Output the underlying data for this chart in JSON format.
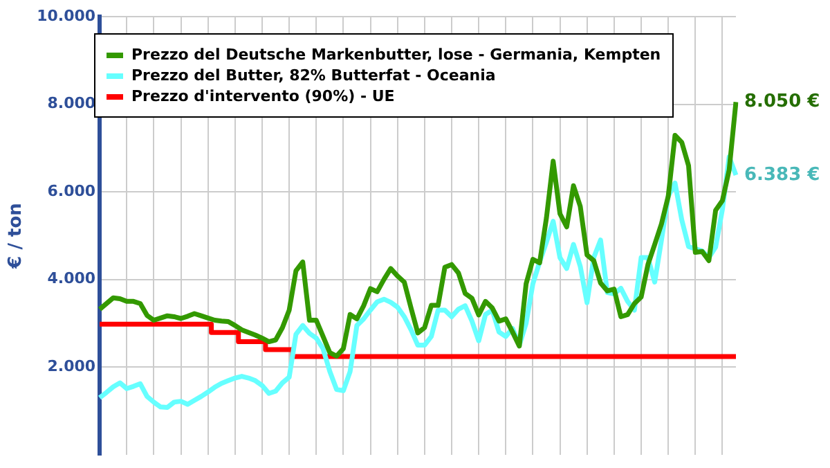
{
  "chart_data": {
    "type": "line",
    "ylabel": "€ / ton",
    "categories": [
      null,
      null,
      null,
      null,
      null,
      null,
      null,
      null,
      null,
      null,
      null,
      null,
      null,
      null,
      null,
      null,
      null,
      null,
      null,
      null,
      null,
      null,
      null,
      null,
      null,
      null,
      null,
      null,
      null,
      null,
      null,
      null,
      null,
      null,
      null,
      null,
      null,
      null,
      null,
      null,
      null,
      null,
      null,
      null,
      null,
      null,
      null,
      null,
      null,
      null,
      null,
      null,
      null,
      null,
      null,
      null,
      null,
      null,
      null,
      null,
      null,
      null,
      null,
      null,
      null,
      null,
      null,
      null,
      null,
      null,
      null,
      null,
      null,
      null,
      null,
      null,
      null,
      null,
      null,
      null,
      null,
      null,
      null,
      null,
      null,
      null,
      null,
      null,
      null,
      null,
      null,
      null,
      null,
      null,
      null
    ],
    "series": [
      {
        "name": "Prezzo del Deutsche Markenbutter, lose - Germania, Kempten",
        "color": "#339900",
        "values": [
          3320,
          3450,
          3580,
          3560,
          3500,
          3500,
          3450,
          3180,
          3070,
          3120,
          3170,
          3150,
          3110,
          3160,
          3220,
          3170,
          3120,
          3070,
          3050,
          3040,
          2950,
          2850,
          2790,
          2730,
          2660,
          2580,
          2620,
          2900,
          3300,
          4200,
          4400,
          3070,
          3070,
          2700,
          2330,
          2250,
          2420,
          3200,
          3100,
          3400,
          3790,
          3720,
          4000,
          4250,
          4080,
          3940,
          3350,
          2780,
          2900,
          3410,
          3410,
          4280,
          4340,
          4150,
          3680,
          3570,
          3190,
          3500,
          3350,
          3050,
          3100,
          2800,
          2480,
          3900,
          4460,
          4380,
          5400,
          6700,
          5500,
          5200,
          6140,
          5670,
          4560,
          4430,
          3920,
          3740,
          3780,
          3150,
          3200,
          3450,
          3600,
          4340,
          4800,
          5270,
          5900,
          7290,
          7130,
          6600,
          4620,
          4640,
          4430,
          5580,
          5800,
          6500,
          8050
        ]
      },
      {
        "name": "Prezzo del Butter, 82% Butterfat - Oceania",
        "color": "#66ffff",
        "values": [
          1300,
          1420,
          1550,
          1640,
          1510,
          1560,
          1620,
          1330,
          1200,
          1090,
          1080,
          1200,
          1220,
          1150,
          1240,
          1330,
          1430,
          1540,
          1630,
          1690,
          1750,
          1790,
          1750,
          1690,
          1580,
          1400,
          1450,
          1640,
          1770,
          2750,
          2950,
          2770,
          2660,
          2420,
          1900,
          1490,
          1460,
          1900,
          2950,
          3100,
          3300,
          3490,
          3550,
          3480,
          3370,
          3150,
          2850,
          2500,
          2500,
          2700,
          3300,
          3300,
          3150,
          3320,
          3400,
          3050,
          2600,
          3200,
          3300,
          2800,
          2700,
          2880,
          2500,
          3000,
          3900,
          4400,
          4850,
          5330,
          4500,
          4250,
          4800,
          4300,
          3470,
          4500,
          4900,
          3700,
          3670,
          3800,
          3500,
          3300,
          4500,
          4500,
          3940,
          4900,
          5900,
          6200,
          5360,
          4750,
          4700,
          4650,
          4500,
          4740,
          5600,
          6800,
          6383
        ]
      },
      {
        "name": "Prezzo d'intervento (90%) - UE",
        "color": "#ff0000",
        "type": "step",
        "values": [
          2980,
          2980,
          2980,
          2980,
          2980,
          2980,
          2980,
          2980,
          2980,
          2980,
          2980,
          2980,
          2980,
          2980,
          2980,
          2980,
          2980,
          2790,
          2790,
          2790,
          2790,
          2580,
          2580,
          2580,
          2580,
          2400,
          2400,
          2400,
          2400,
          2240,
          2240,
          2240,
          2240,
          2240,
          2240,
          2240,
          2240,
          2240,
          2240,
          2240,
          2240,
          2240,
          2240,
          2240,
          2240,
          2240,
          2240,
          2240,
          2240,
          2240,
          2240,
          2240,
          2240,
          2240,
          2240,
          2240,
          2240,
          2240,
          2240,
          2240,
          2240,
          2240,
          2240,
          2240,
          2240,
          2240,
          2240,
          2240,
          2240,
          2240,
          2240,
          2240,
          2240,
          2240,
          2240,
          2240,
          2240,
          2240,
          2240,
          2240,
          2240,
          2240,
          2240,
          2240,
          2240,
          2240,
          2240,
          2240,
          2240,
          2240,
          2240,
          2240,
          2240,
          2240,
          2240
        ]
      }
    ],
    "ylim": [
      0,
      10000
    ],
    "yticks": [
      {
        "value": 2000,
        "label": "2.000"
      },
      {
        "value": 4000,
        "label": "4.000"
      },
      {
        "value": 6000,
        "label": "6.000"
      },
      {
        "value": 8000,
        "label": "8.000"
      },
      {
        "value": 10000,
        "label": "10.000"
      }
    ],
    "tick_labels": "y",
    "grid": true,
    "legend": "top left",
    "marker": "none",
    "line_style": "solid",
    "annotations": [
      "8.050 €",
      "6.383 €"
    ]
  }
}
